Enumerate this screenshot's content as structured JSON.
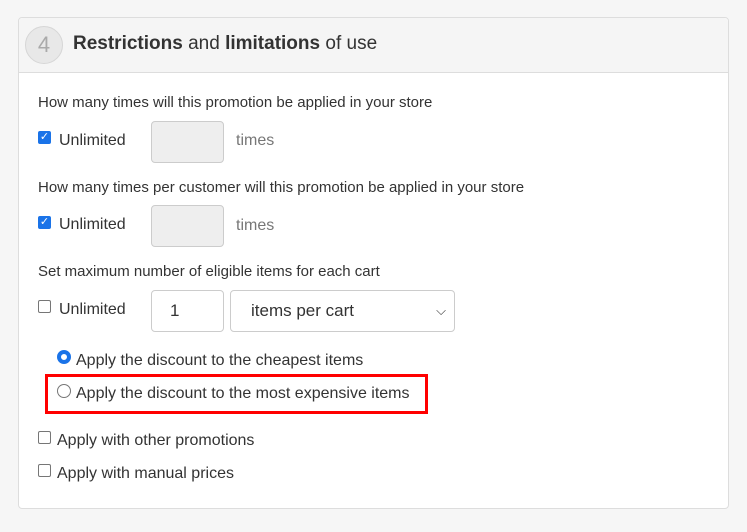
{
  "section": {
    "number": "4",
    "title_bold1": "Restrictions",
    "title_mid": " and ",
    "title_bold2": "limitations",
    "title_end": " of use"
  },
  "usage_limit": {
    "label": "How many times will this promotion be applied in your store",
    "unlimited_label": "Unlimited",
    "unlimited_checked": true,
    "value": "",
    "unit": "times"
  },
  "customer_limit": {
    "label": "How many times per customer will this promotion be applied in your store",
    "unlimited_label": "Unlimited",
    "unlimited_checked": true,
    "value": "",
    "unit": "times"
  },
  "cart_limit": {
    "label": "Set maximum number of eligible items for each cart",
    "unlimited_label": "Unlimited",
    "unlimited_checked": false,
    "value": "1",
    "select_value": "items per cart"
  },
  "discount_target": {
    "options": [
      {
        "label": "Apply the discount to the cheapest items",
        "selected": true
      },
      {
        "label": "Apply the discount to the most expensive items",
        "selected": false
      }
    ]
  },
  "other_promotions": {
    "label": "Apply with other promotions",
    "checked": false
  },
  "manual_prices": {
    "label": "Apply with manual prices",
    "checked": false
  },
  "colors": {
    "accent": "#1a73e8",
    "highlight": "#ff0000"
  }
}
